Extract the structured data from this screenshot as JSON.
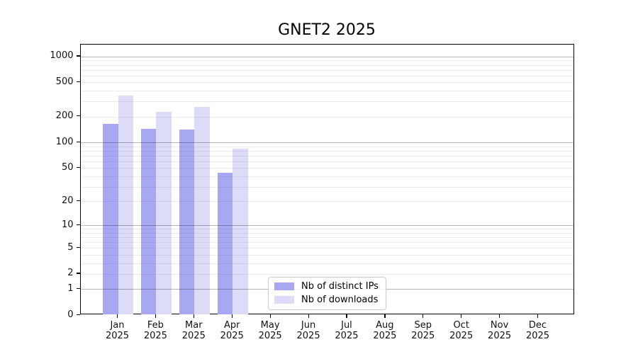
{
  "title": "GNET2 2025",
  "chart_data": {
    "type": "bar",
    "title": "GNET2 2025",
    "y_scale": "log10(value+1)",
    "grid": "on",
    "legend_position": "lower-center-left inside plot",
    "categories": [
      "Jan",
      "Feb",
      "Mar",
      "Apr",
      "May",
      "Jun",
      "Jul",
      "Aug",
      "Sep",
      "Oct",
      "Nov",
      "Dec"
    ],
    "category_year": "2025",
    "series": [
      {
        "name": "Nb of distinct IPs",
        "color": "#a8a8f2",
        "values": [
          165,
          145,
          140,
          44,
          0,
          0,
          0,
          0,
          0,
          0,
          0,
          0
        ]
      },
      {
        "name": "Nb of downloads",
        "color": "#dcdcf8",
        "values": [
          350,
          227,
          260,
          84,
          0,
          0,
          0,
          0,
          0,
          0,
          0,
          0
        ]
      }
    ],
    "y_ticks": [
      0,
      1,
      2,
      5,
      10,
      20,
      50,
      100,
      200,
      500,
      1000
    ],
    "ylim": [
      0,
      1390
    ],
    "grid_major_at": [
      1,
      10,
      100,
      1000
    ],
    "colors": {
      "distinct_ips": "#a8a8f2",
      "downloads": "#dcdcf8",
      "axis": "#000000",
      "grid_major": "#b5b5b5",
      "grid_minor": "#ededed",
      "legend_border": "#cccccc"
    }
  }
}
